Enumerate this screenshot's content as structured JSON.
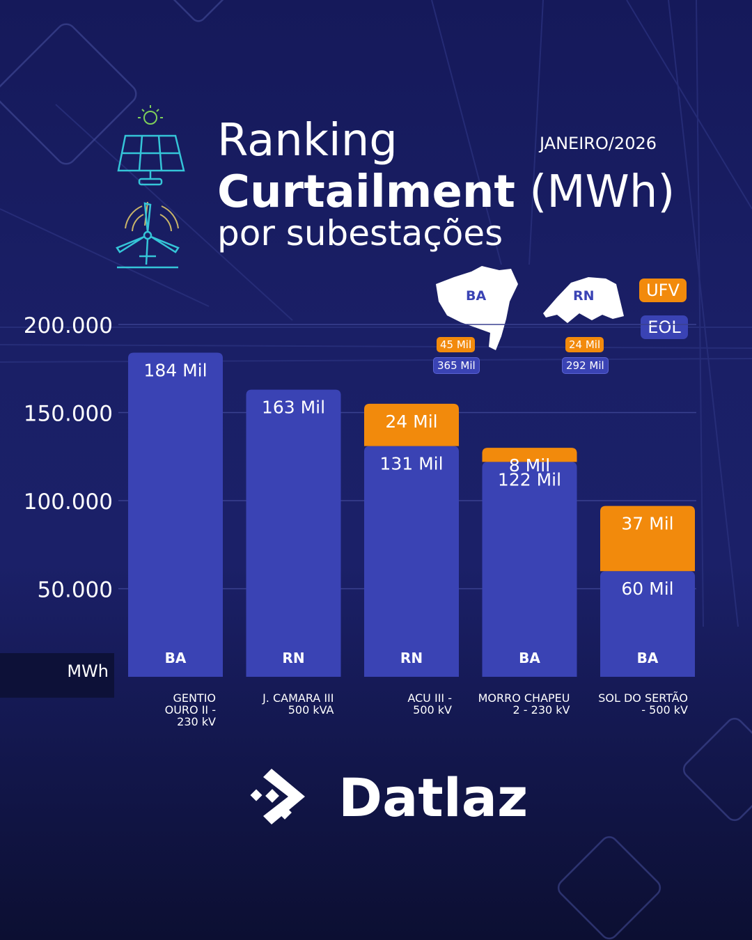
{
  "header": {
    "title_line1": "Ranking",
    "title_line2_bold": "Curtailment",
    "title_line2_unit": "(MWh)",
    "title_line3": "por subestações",
    "date": "JANEIRO/2026"
  },
  "states": [
    {
      "code": "BA",
      "ufv": "45 Mil",
      "eol": "365 Mil"
    },
    {
      "code": "RN",
      "ufv": "24 Mil",
      "eol": "292 Mil"
    }
  ],
  "brand": "Datlaz",
  "colors": {
    "eol": "#3a43b4",
    "ufv": "#f28a0c"
  },
  "chart_data": {
    "type": "bar",
    "stacked": true,
    "ylabel": "MWh",
    "ylim": [
      0,
      200000
    ],
    "yticks": [
      50000,
      100000,
      150000,
      200000
    ],
    "ytick_labels": [
      "50.000",
      "100.000",
      "150.000",
      "200.000"
    ],
    "categories": [
      "GENTIO OURO II - 230 kV",
      "J. CAMARA III 500 kVA",
      "ACU III - 500 kV",
      "MORRO CHAPEU 2 - 230 kV",
      "SOL DO SERTÃO - 500 kV"
    ],
    "category_lines": [
      [
        "GENTIO",
        "OURO II -",
        "230 kV"
      ],
      [
        "J. CAMARA III",
        "500 kVA"
      ],
      [
        "ACU III -",
        "500 kV"
      ],
      [
        "MORRO CHAPEU",
        "2 - 230 kV"
      ],
      [
        "SOL DO SERTÃO",
        "- 500 kV"
      ]
    ],
    "states": [
      "BA",
      "RN",
      "RN",
      "BA",
      "BA"
    ],
    "series": [
      {
        "name": "EOL",
        "values": [
          184000,
          163000,
          131000,
          122000,
          60000
        ],
        "labels": [
          "184 Mil",
          "163 Mil",
          "131 Mil",
          "122 Mil",
          "60 Mil"
        ]
      },
      {
        "name": "UFV",
        "values": [
          0,
          0,
          24000,
          8000,
          37000
        ],
        "labels": [
          "",
          "",
          "24 Mil",
          "8 Mil",
          "37 Mil"
        ]
      }
    ]
  }
}
